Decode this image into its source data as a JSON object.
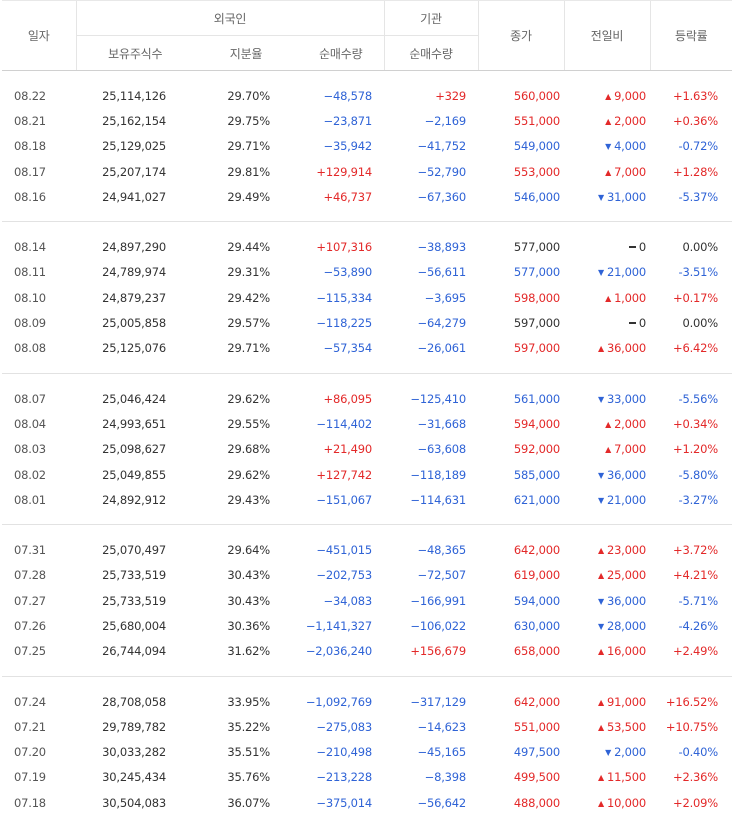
{
  "headers": {
    "date": "일자",
    "foreign": "외국인",
    "institution": "기관",
    "close": "종가",
    "change": "전일비",
    "rate": "등락률",
    "holdings": "보유주식수",
    "ratio": "지분율",
    "foreign_net": "순매수량",
    "inst_net": "순매수량"
  },
  "colors": {
    "up": "#e32929",
    "down": "#2f63d6",
    "neutral": "#333333"
  },
  "groups": [
    [
      {
        "date": "08.22",
        "holdings": "25,114,126",
        "ratio": "29.70%",
        "fnet": "−48,578",
        "inet": "+329",
        "close": "560,000",
        "dir": "up",
        "change": "9,000",
        "rate": "+1.63%"
      },
      {
        "date": "08.21",
        "holdings": "25,162,154",
        "ratio": "29.75%",
        "fnet": "−23,871",
        "inet": "−2,169",
        "close": "551,000",
        "dir": "up",
        "change": "2,000",
        "rate": "+0.36%"
      },
      {
        "date": "08.18",
        "holdings": "25,129,025",
        "ratio": "29.71%",
        "fnet": "−35,942",
        "inet": "−41,752",
        "close": "549,000",
        "dir": "down",
        "change": "4,000",
        "rate": "-0.72%"
      },
      {
        "date": "08.17",
        "holdings": "25,207,174",
        "ratio": "29.81%",
        "fnet": "+129,914",
        "inet": "−52,790",
        "close": "553,000",
        "dir": "up",
        "change": "7,000",
        "rate": "+1.28%"
      },
      {
        "date": "08.16",
        "holdings": "24,941,027",
        "ratio": "29.49%",
        "fnet": "+46,737",
        "inet": "−67,360",
        "close": "546,000",
        "dir": "down",
        "change": "31,000",
        "rate": "-5.37%"
      }
    ],
    [
      {
        "date": "08.14",
        "holdings": "24,897,290",
        "ratio": "29.44%",
        "fnet": "+107,316",
        "inet": "−38,893",
        "close": "577,000",
        "dir": "flat",
        "change": "0",
        "rate": "0.00%"
      },
      {
        "date": "08.11",
        "holdings": "24,789,974",
        "ratio": "29.31%",
        "fnet": "−53,890",
        "inet": "−56,611",
        "close": "577,000",
        "dir": "down",
        "change": "21,000",
        "rate": "-3.51%"
      },
      {
        "date": "08.10",
        "holdings": "24,879,237",
        "ratio": "29.42%",
        "fnet": "−115,334",
        "inet": "−3,695",
        "close": "598,000",
        "dir": "up",
        "change": "1,000",
        "rate": "+0.17%"
      },
      {
        "date": "08.09",
        "holdings": "25,005,858",
        "ratio": "29.57%",
        "fnet": "−118,225",
        "inet": "−64,279",
        "close": "597,000",
        "dir": "flat",
        "change": "0",
        "rate": "0.00%"
      },
      {
        "date": "08.08",
        "holdings": "25,125,076",
        "ratio": "29.71%",
        "fnet": "−57,354",
        "inet": "−26,061",
        "close": "597,000",
        "dir": "up",
        "change": "36,000",
        "rate": "+6.42%"
      }
    ],
    [
      {
        "date": "08.07",
        "holdings": "25,046,424",
        "ratio": "29.62%",
        "fnet": "+86,095",
        "inet": "−125,410",
        "close": "561,000",
        "dir": "down",
        "change": "33,000",
        "rate": "-5.56%"
      },
      {
        "date": "08.04",
        "holdings": "24,993,651",
        "ratio": "29.55%",
        "fnet": "−114,402",
        "inet": "−31,668",
        "close": "594,000",
        "dir": "up",
        "change": "2,000",
        "rate": "+0.34%"
      },
      {
        "date": "08.03",
        "holdings": "25,098,627",
        "ratio": "29.68%",
        "fnet": "+21,490",
        "inet": "−63,608",
        "close": "592,000",
        "dir": "up",
        "change": "7,000",
        "rate": "+1.20%"
      },
      {
        "date": "08.02",
        "holdings": "25,049,855",
        "ratio": "29.62%",
        "fnet": "+127,742",
        "inet": "−118,189",
        "close": "585,000",
        "dir": "down",
        "change": "36,000",
        "rate": "-5.80%"
      },
      {
        "date": "08.01",
        "holdings": "24,892,912",
        "ratio": "29.43%",
        "fnet": "−151,067",
        "inet": "−114,631",
        "close": "621,000",
        "dir": "down",
        "change": "21,000",
        "rate": "-3.27%"
      }
    ],
    [
      {
        "date": "07.31",
        "holdings": "25,070,497",
        "ratio": "29.64%",
        "fnet": "−451,015",
        "inet": "−48,365",
        "close": "642,000",
        "dir": "up",
        "change": "23,000",
        "rate": "+3.72%"
      },
      {
        "date": "07.28",
        "holdings": "25,733,519",
        "ratio": "30.43%",
        "fnet": "−202,753",
        "inet": "−72,507",
        "close": "619,000",
        "dir": "up",
        "change": "25,000",
        "rate": "+4.21%"
      },
      {
        "date": "07.27",
        "holdings": "25,733,519",
        "ratio": "30.43%",
        "fnet": "−34,083",
        "inet": "−166,991",
        "close": "594,000",
        "dir": "down",
        "change": "36,000",
        "rate": "-5.71%"
      },
      {
        "date": "07.26",
        "holdings": "25,680,004",
        "ratio": "30.36%",
        "fnet": "−1,141,327",
        "inet": "−106,022",
        "close": "630,000",
        "dir": "down",
        "change": "28,000",
        "rate": "-4.26%"
      },
      {
        "date": "07.25",
        "holdings": "26,744,094",
        "ratio": "31.62%",
        "fnet": "−2,036,240",
        "inet": "+156,679",
        "close": "658,000",
        "dir": "up",
        "change": "16,000",
        "rate": "+2.49%"
      }
    ],
    [
      {
        "date": "07.24",
        "holdings": "28,708,058",
        "ratio": "33.95%",
        "fnet": "−1,092,769",
        "inet": "−317,129",
        "close": "642,000",
        "dir": "up",
        "change": "91,000",
        "rate": "+16.52%"
      },
      {
        "date": "07.21",
        "holdings": "29,789,782",
        "ratio": "35.22%",
        "fnet": "−275,083",
        "inet": "−14,623",
        "close": "551,000",
        "dir": "up",
        "change": "53,500",
        "rate": "+10.75%"
      },
      {
        "date": "07.20",
        "holdings": "30,033,282",
        "ratio": "35.51%",
        "fnet": "−210,498",
        "inet": "−45,165",
        "close": "497,500",
        "dir": "down",
        "change": "2,000",
        "rate": "-0.40%"
      },
      {
        "date": "07.19",
        "holdings": "30,245,434",
        "ratio": "35.76%",
        "fnet": "−213,228",
        "inet": "−8,398",
        "close": "499,500",
        "dir": "up",
        "change": "11,500",
        "rate": "+2.36%"
      },
      {
        "date": "07.18",
        "holdings": "30,504,083",
        "ratio": "36.07%",
        "fnet": "−375,014",
        "inet": "−56,642",
        "close": "488,000",
        "dir": "up",
        "change": "10,000",
        "rate": "+2.09%"
      }
    ]
  ]
}
